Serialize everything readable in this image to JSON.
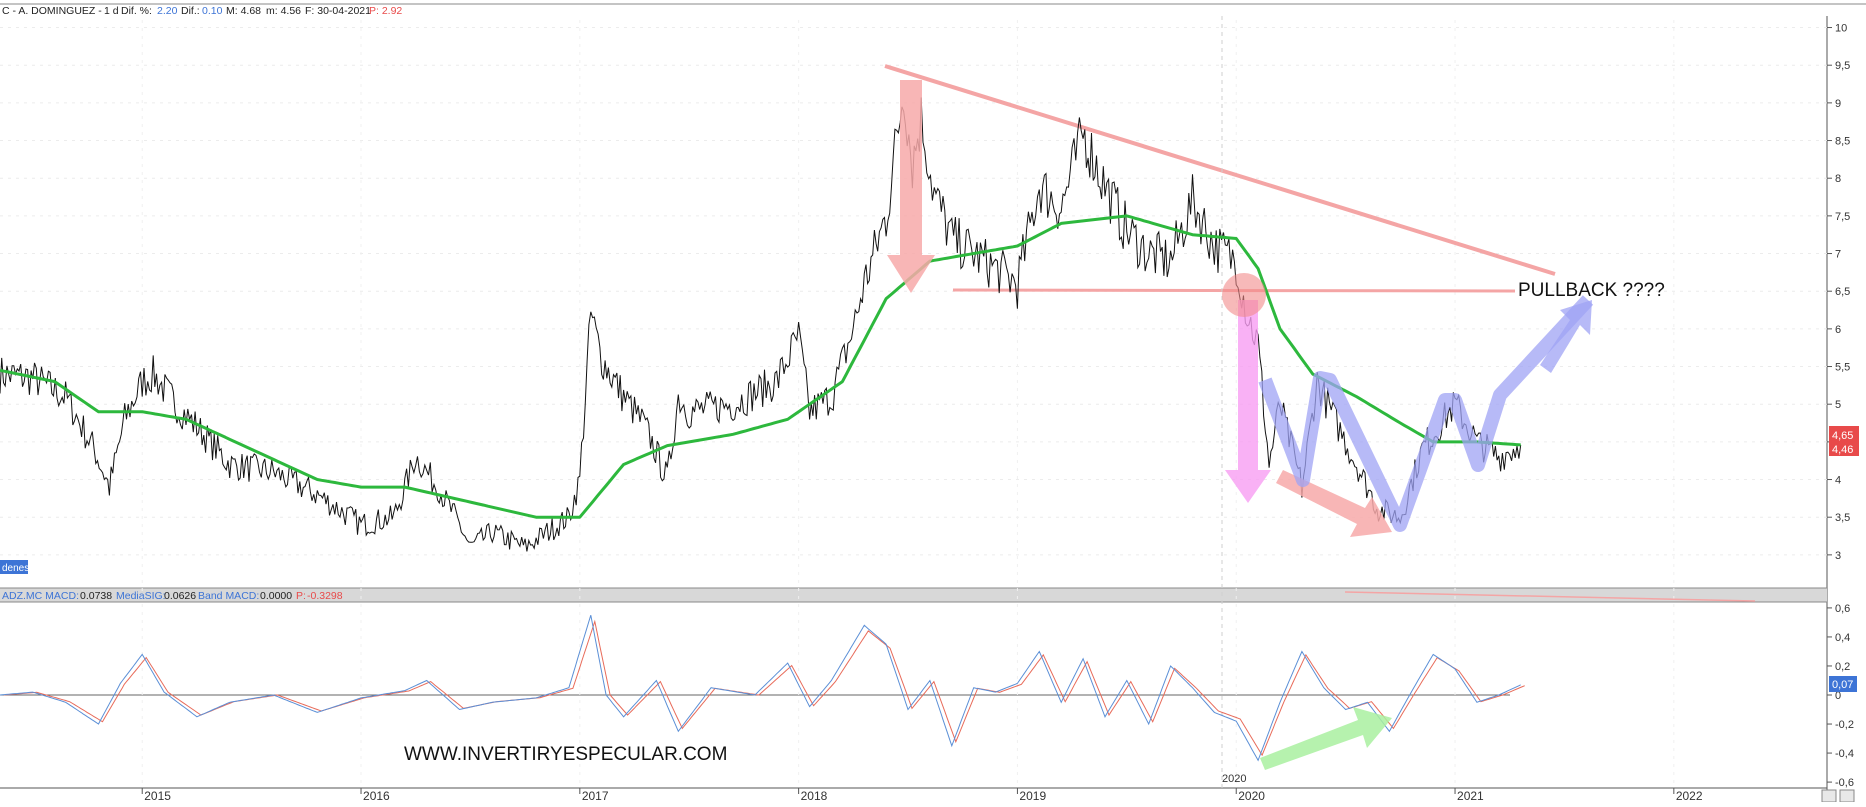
{
  "header": {
    "symbol": "C - A. DOMINGUEZ -",
    "timeframe": "1 d",
    "dif_pct_label": "Dif. %:",
    "dif_pct_value": "2.20",
    "dif_label": "Dif.:",
    "dif_value": "0.10",
    "m_label": "M: 4.68",
    "m_value2": "m: 4.56",
    "date_label": "F: 30-04-2021",
    "p_label": "P: 2.92"
  },
  "badges": {
    "left_badge": "denes",
    "price_last": "4,65",
    "price_close": "4,46",
    "macd_last": "0,07"
  },
  "macd_header": {
    "name": "ADZ.MC  MACD:",
    "macd_value": "0.0738",
    "sig_label": "MediaSIG:",
    "sig_value": "0.0626",
    "band_label": "Band  MACD:",
    "band_value": "0.0000",
    "p_label": "P:",
    "p_value": "-0.3298"
  },
  "annotations": {
    "pullback": "PULLBACK ????",
    "watermark": "WWW.INVERTIRYESPECULAR.COM",
    "year_marker": "2020"
  },
  "colors": {
    "price_line": "#111111",
    "ma_line": "#2db83d",
    "resistance": "#f4a5a5",
    "support": "#f4a5a5",
    "arrow_red": "#f7a9a9",
    "arrow_pink": "#f79ef2",
    "arrow_blue": "#9fa3f4",
    "arrow_green": "#a9f0a0",
    "macd_line": "#5b8fd6",
    "signal_line": "#e86b5a",
    "badge_red": "#e84a4a",
    "badge_blue": "#3d74d6"
  },
  "chart_data": [
    {
      "type": "line",
      "x_ticks": [
        "2015",
        "2016",
        "2017",
        "2018",
        "2019",
        "2020",
        "2021",
        "2022"
      ],
      "y_ticks": [
        "3",
        "3,5",
        "4",
        "4,5",
        "5",
        "5,5",
        "6",
        "6,5",
        "7",
        "7,5",
        "8",
        "8,5",
        "9",
        "9,5",
        "10"
      ],
      "ylim": [
        2.6,
        10.1
      ],
      "xlim": [
        2014.35,
        2022.7
      ],
      "series": [
        {
          "values_x": [
            2014.35,
            2014.5,
            2014.65,
            2014.78,
            2014.85,
            2014.92,
            2015.0,
            2015.05,
            2015.15,
            2015.25,
            2015.4,
            2015.6,
            2015.8,
            2016.0,
            2016.15,
            2016.25,
            2016.35,
            2016.45,
            2016.5,
            2016.6,
            2016.75,
            2016.85,
            2016.95,
            2017.0,
            2017.05,
            2017.1,
            2017.2,
            2017.3,
            2017.4,
            2017.45,
            2017.5,
            2017.7,
            2017.9,
            2018.0,
            2018.05,
            2018.15,
            2018.25,
            2018.3,
            2018.4,
            2018.48,
            2018.52,
            2018.56,
            2018.62,
            2018.7,
            2018.8,
            2018.9,
            2019.0,
            2019.1,
            2019.2,
            2019.3,
            2019.4,
            2019.5,
            2019.6,
            2019.7,
            2019.8,
            2019.9,
            2020.0,
            2020.05,
            2020.1,
            2020.15,
            2020.2,
            2020.3,
            2020.37,
            2020.45,
            2020.55,
            2020.65,
            2020.75,
            2020.85,
            2021.0,
            2021.1,
            2021.2,
            2021.3
          ],
          "values": [
            5.4,
            5.35,
            5.1,
            4.4,
            3.9,
            4.8,
            5.3,
            5.4,
            5.0,
            4.7,
            4.2,
            4.1,
            3.8,
            3.4,
            3.5,
            4.3,
            3.9,
            3.4,
            3.1,
            3.3,
            3.1,
            3.3,
            3.5,
            4.0,
            6.2,
            5.6,
            5.1,
            4.7,
            4.0,
            5.1,
            4.9,
            5.0,
            5.3,
            5.9,
            4.9,
            5.1,
            6.0,
            6.6,
            7.5,
            9.2,
            8.2,
            8.8,
            7.8,
            7.2,
            7.0,
            6.8,
            6.6,
            7.9,
            7.6,
            8.6,
            7.9,
            7.3,
            7.0,
            6.9,
            7.7,
            7.1,
            6.9,
            6.2,
            5.8,
            4.2,
            5.0,
            3.9,
            5.3,
            4.8,
            4.2,
            3.6,
            3.5,
            4.4,
            5.0,
            4.5,
            4.3,
            4.46
          ]
        },
        {
          "values_x": [
            2014.35,
            2014.6,
            2014.8,
            2015.0,
            2015.2,
            2015.5,
            2015.8,
            2016.0,
            2016.2,
            2016.5,
            2016.8,
            2017.0,
            2017.2,
            2017.4,
            2017.7,
            2017.95,
            2018.2,
            2018.4,
            2018.6,
            2018.8,
            2019.0,
            2019.2,
            2019.5,
            2019.8,
            2020.0,
            2020.1,
            2020.2,
            2020.35,
            2020.55,
            2020.75,
            2020.9,
            2021.1,
            2021.3
          ],
          "values": [
            5.45,
            5.3,
            4.9,
            4.9,
            4.8,
            4.4,
            4.0,
            3.9,
            3.9,
            3.7,
            3.5,
            3.5,
            4.2,
            4.45,
            4.6,
            4.8,
            5.3,
            6.4,
            6.9,
            7.0,
            7.1,
            7.4,
            7.5,
            7.25,
            7.2,
            6.8,
            6.0,
            5.4,
            5.1,
            4.75,
            4.5,
            4.5,
            4.46
          ]
        }
      ]
    },
    {
      "type": "line",
      "x_ticks": [
        "2015",
        "2016",
        "2017",
        "2018",
        "2019",
        "2020",
        "2021",
        "2022"
      ],
      "y_ticks": [
        "0,6",
        "0,4",
        "0,2",
        "0",
        "-0,2",
        "-0,4",
        "-0,6"
      ],
      "ylim": [
        -0.62,
        0.62
      ],
      "xlim": [
        2014.35,
        2022.7
      ],
      "series": [
        {
          "values_x": [
            2014.35,
            2014.5,
            2014.65,
            2014.8,
            2014.9,
            2015.0,
            2015.1,
            2015.25,
            2015.4,
            2015.6,
            2015.8,
            2016.0,
            2016.2,
            2016.3,
            2016.45,
            2016.6,
            2016.8,
            2016.95,
            2017.05,
            2017.12,
            2017.2,
            2017.35,
            2017.45,
            2017.6,
            2017.8,
            2017.95,
            2018.05,
            2018.15,
            2018.3,
            2018.4,
            2018.5,
            2018.6,
            2018.7,
            2018.8,
            2018.9,
            2019.0,
            2019.1,
            2019.2,
            2019.3,
            2019.4,
            2019.5,
            2019.6,
            2019.7,
            2019.8,
            2019.9,
            2020.0,
            2020.1,
            2020.2,
            2020.3,
            2020.4,
            2020.5,
            2020.6,
            2020.7,
            2020.8,
            2020.9,
            2021.0,
            2021.1,
            2021.2,
            2021.3
          ],
          "values": [
            0.0,
            0.02,
            -0.05,
            -0.2,
            0.08,
            0.28,
            0.02,
            -0.15,
            -0.05,
            0.0,
            -0.12,
            -0.02,
            0.03,
            0.1,
            -0.1,
            -0.05,
            -0.02,
            0.05,
            0.55,
            0.0,
            -0.15,
            0.1,
            -0.25,
            0.05,
            0.0,
            0.22,
            -0.08,
            0.1,
            0.48,
            0.35,
            -0.1,
            0.1,
            -0.35,
            0.05,
            0.02,
            0.08,
            0.3,
            -0.05,
            0.25,
            -0.15,
            0.1,
            -0.2,
            0.2,
            0.05,
            -0.12,
            -0.18,
            -0.45,
            -0.05,
            0.3,
            0.05,
            -0.1,
            -0.05,
            -0.25,
            0.02,
            0.28,
            0.18,
            -0.05,
            0.0,
            0.07
          ]
        }
      ]
    }
  ]
}
